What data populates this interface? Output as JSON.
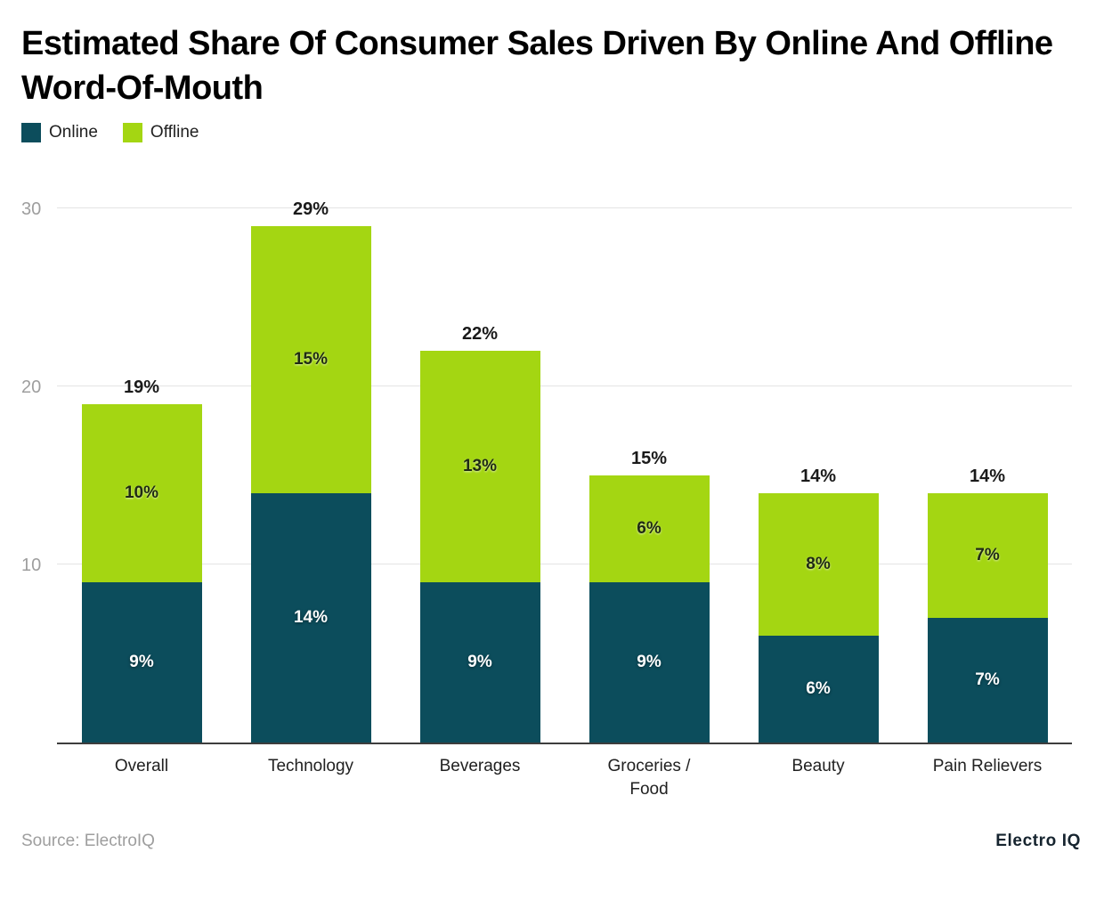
{
  "chart_data": {
    "type": "bar",
    "stacked": true,
    "title": "Estimated Share Of Consumer Sales Driven By Online And Offline Word-Of-Mouth",
    "categories": [
      "Overall",
      "Technology",
      "Beverages",
      "Groceries / Food",
      "Beauty",
      "Pain Relievers"
    ],
    "series": [
      {
        "name": "Online",
        "color": "#0c4d5c",
        "label_color": "#ffffff",
        "values": [
          9,
          14,
          9,
          9,
          6,
          7
        ]
      },
      {
        "name": "Offline",
        "color": "#a4d612",
        "label_color": "#1f2a14",
        "values": [
          10,
          15,
          13,
          6,
          8,
          7
        ]
      }
    ],
    "totals": [
      "19%",
      "29%",
      "22%",
      "15%",
      "14%",
      "14%"
    ],
    "ylim": [
      0,
      32
    ],
    "yticks": [
      10,
      20,
      30
    ],
    "grid": true,
    "legend_position": "top-left",
    "ylabel": "",
    "xlabel": ""
  },
  "footer": {
    "source": "Source: ElectroIQ",
    "brand": "Electro IQ"
  }
}
